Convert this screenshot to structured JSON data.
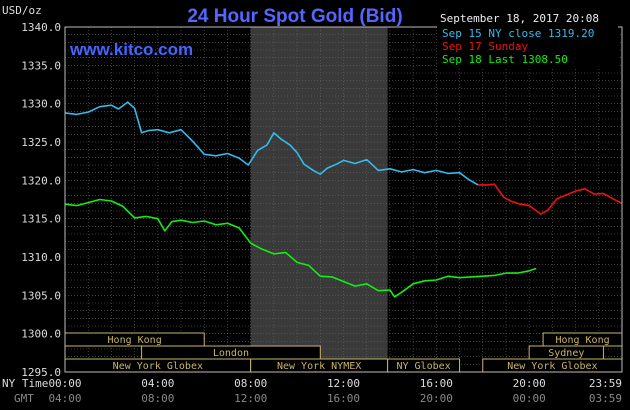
{
  "chart_data": {
    "type": "line",
    "title": "24 Hour Spot Gold (Bid)",
    "watermark": "www.kitco.com",
    "unit_label": "USD/oz",
    "timestamp": "September 18, 2017 20:08",
    "ylim": [
      1295.0,
      1340.0
    ],
    "y_ticks": [
      "1340.0",
      "1335.0",
      "1330.0",
      "1325.0",
      "1320.0",
      "1315.0",
      "1310.0",
      "1305.0",
      "1300.0",
      "1295.0"
    ],
    "y_tick_values": [
      1340,
      1335,
      1330,
      1325,
      1320,
      1315,
      1310,
      1305,
      1300,
      1295
    ],
    "x_range_hours": [
      0,
      24
    ],
    "x_tick_hours": [
      0,
      4,
      8,
      12,
      16,
      20,
      24
    ],
    "x_row1_label": "NY Time",
    "x_row1_ticks": [
      "00:00",
      "04:00",
      "08:00",
      "12:00",
      "16:00",
      "20:00",
      "23:59"
    ],
    "x_row2_label": "GMT",
    "x_row2_ticks": [
      "04:00",
      "08:00",
      "12:00",
      "16:00",
      "20:00",
      "00:00",
      "03:59"
    ],
    "shaded_band_hours": [
      8.0,
      13.9
    ],
    "grid": true,
    "legend_position": "top-right",
    "series": [
      {
        "name": "Sep 15 NY close 1319.20",
        "color": "#33bbee",
        "x": [
          0,
          0.5,
          1,
          1.5,
          2,
          2.3,
          2.7,
          3,
          3.3,
          3.6,
          4,
          4.5,
          5,
          5.5,
          6,
          6.5,
          7,
          7.5,
          7.9,
          8.3,
          8.7,
          9,
          9.3,
          9.7,
          10,
          10.3,
          10.7,
          11,
          11.3,
          11.7,
          12,
          12.5,
          13,
          13.5,
          14,
          14.5,
          15,
          15.5,
          16,
          16.5,
          17,
          17.4,
          17.8
        ],
        "y": [
          1328.8,
          1328.6,
          1328.9,
          1329.6,
          1329.8,
          1329.3,
          1330.2,
          1329.4,
          1326.2,
          1326.5,
          1326.6,
          1326.2,
          1326.6,
          1325.1,
          1323.4,
          1323.2,
          1323.5,
          1322.9,
          1322.0,
          1323.9,
          1324.6,
          1326.2,
          1325.4,
          1324.6,
          1323.6,
          1322.1,
          1321.3,
          1320.8,
          1321.6,
          1322.1,
          1322.6,
          1322.2,
          1322.7,
          1321.3,
          1321.5,
          1321.1,
          1321.4,
          1321.0,
          1321.3,
          1320.9,
          1321.0,
          1320.1,
          1319.4
        ]
      },
      {
        "name": "Sep 17 Sunday",
        "color": "#ee1111",
        "x": [
          17.8,
          18.2,
          18.5,
          18.9,
          19.2,
          19.6,
          20,
          20.5,
          20.8,
          21.2,
          21.6,
          22,
          22.4,
          22.8,
          23.2,
          23.6,
          24
        ],
        "y": [
          1319.4,
          1319.4,
          1319.5,
          1317.8,
          1317.3,
          1316.9,
          1316.7,
          1315.6,
          1316.1,
          1317.6,
          1318.1,
          1318.6,
          1318.9,
          1318.2,
          1318.3,
          1317.6,
          1317.0
        ]
      },
      {
        "name": "Sep 18 Last 1308.50",
        "color": "#11ee11",
        "x": [
          0,
          0.5,
          1,
          1.5,
          2,
          2.5,
          3,
          3.5,
          4,
          4.3,
          4.6,
          5,
          5.5,
          6,
          6.5,
          7,
          7.5,
          8,
          8.5,
          9,
          9.5,
          10,
          10.5,
          11,
          11.5,
          12,
          12.5,
          13,
          13.5,
          14,
          14.2,
          14.6,
          15,
          15.5,
          16,
          16.5,
          17,
          17.5,
          18,
          18.5,
          19,
          19.5,
          20,
          20.3
        ],
        "y": [
          1316.9,
          1316.7,
          1317.1,
          1317.5,
          1317.3,
          1316.6,
          1315.1,
          1315.3,
          1315.0,
          1313.4,
          1314.6,
          1314.8,
          1314.5,
          1314.7,
          1314.2,
          1314.4,
          1313.8,
          1311.8,
          1311.0,
          1310.4,
          1310.6,
          1309.3,
          1308.9,
          1307.5,
          1307.4,
          1306.8,
          1306.2,
          1306.5,
          1305.6,
          1305.7,
          1304.8,
          1305.6,
          1306.5,
          1306.9,
          1307.0,
          1307.5,
          1307.3,
          1307.4,
          1307.5,
          1307.6,
          1307.9,
          1307.9,
          1308.2,
          1308.5
        ]
      }
    ],
    "session_rows": [
      [
        {
          "label": "Hong Kong",
          "start": 0.0,
          "end": 6.0
        },
        {
          "label": "Hong Kong",
          "start": 20.6,
          "end": 24.0
        }
      ],
      [
        {
          "label": "London",
          "start": 3.3,
          "end": 11.0
        },
        {
          "label": "Sydney",
          "start": 20.0,
          "end": 23.2
        }
      ],
      [
        {
          "label": "New York Globex",
          "start": 0.0,
          "end": 8.0
        },
        {
          "label": "New York NYMEX",
          "start": 8.0,
          "end": 13.9
        },
        {
          "label": "NY Globex",
          "start": 13.9,
          "end": 17.0
        },
        {
          "label": "New York Globex",
          "start": 18.0,
          "end": 24.0
        }
      ]
    ]
  }
}
